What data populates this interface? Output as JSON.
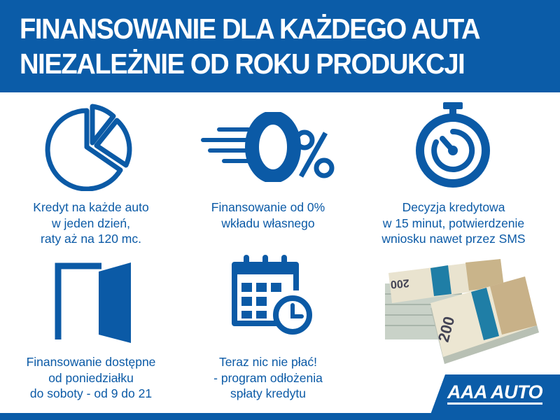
{
  "header": {
    "line1": "FINANSOWANIE DLA KAŻDEGO AUTA",
    "line2": "NIEZALEŻNIE OD ROKU PRODUKCJI"
  },
  "features": [
    {
      "icon": "pie-chart-icon",
      "lines": [
        "Kredyt na każde auto",
        "w jeden dzień,",
        "raty aż na 120 mc."
      ]
    },
    {
      "icon": "zero-percent-icon",
      "lines": [
        "Finansowanie od 0%",
        "wkładu własnego"
      ]
    },
    {
      "icon": "stopwatch-icon",
      "lines": [
        "Decyzja kredytowa",
        "w 15 minut, potwierdzenie",
        "wniosku nawet przez SMS"
      ]
    },
    {
      "icon": "door-icon",
      "lines": [
        "Finansowanie dostępne",
        "od poniedziałku",
        "do soboty - od 9 do 21"
      ]
    },
    {
      "icon": "calendar-clock-icon",
      "lines": [
        "Teraz nic nie płać!",
        "- program odłożenia",
        "spłaty kredytu"
      ]
    }
  ],
  "money": {
    "denomination": "200"
  },
  "logo": {
    "text": "AAA AUTO"
  },
  "colors": {
    "brand": "#0b5ca8",
    "background": "#ffffff"
  }
}
